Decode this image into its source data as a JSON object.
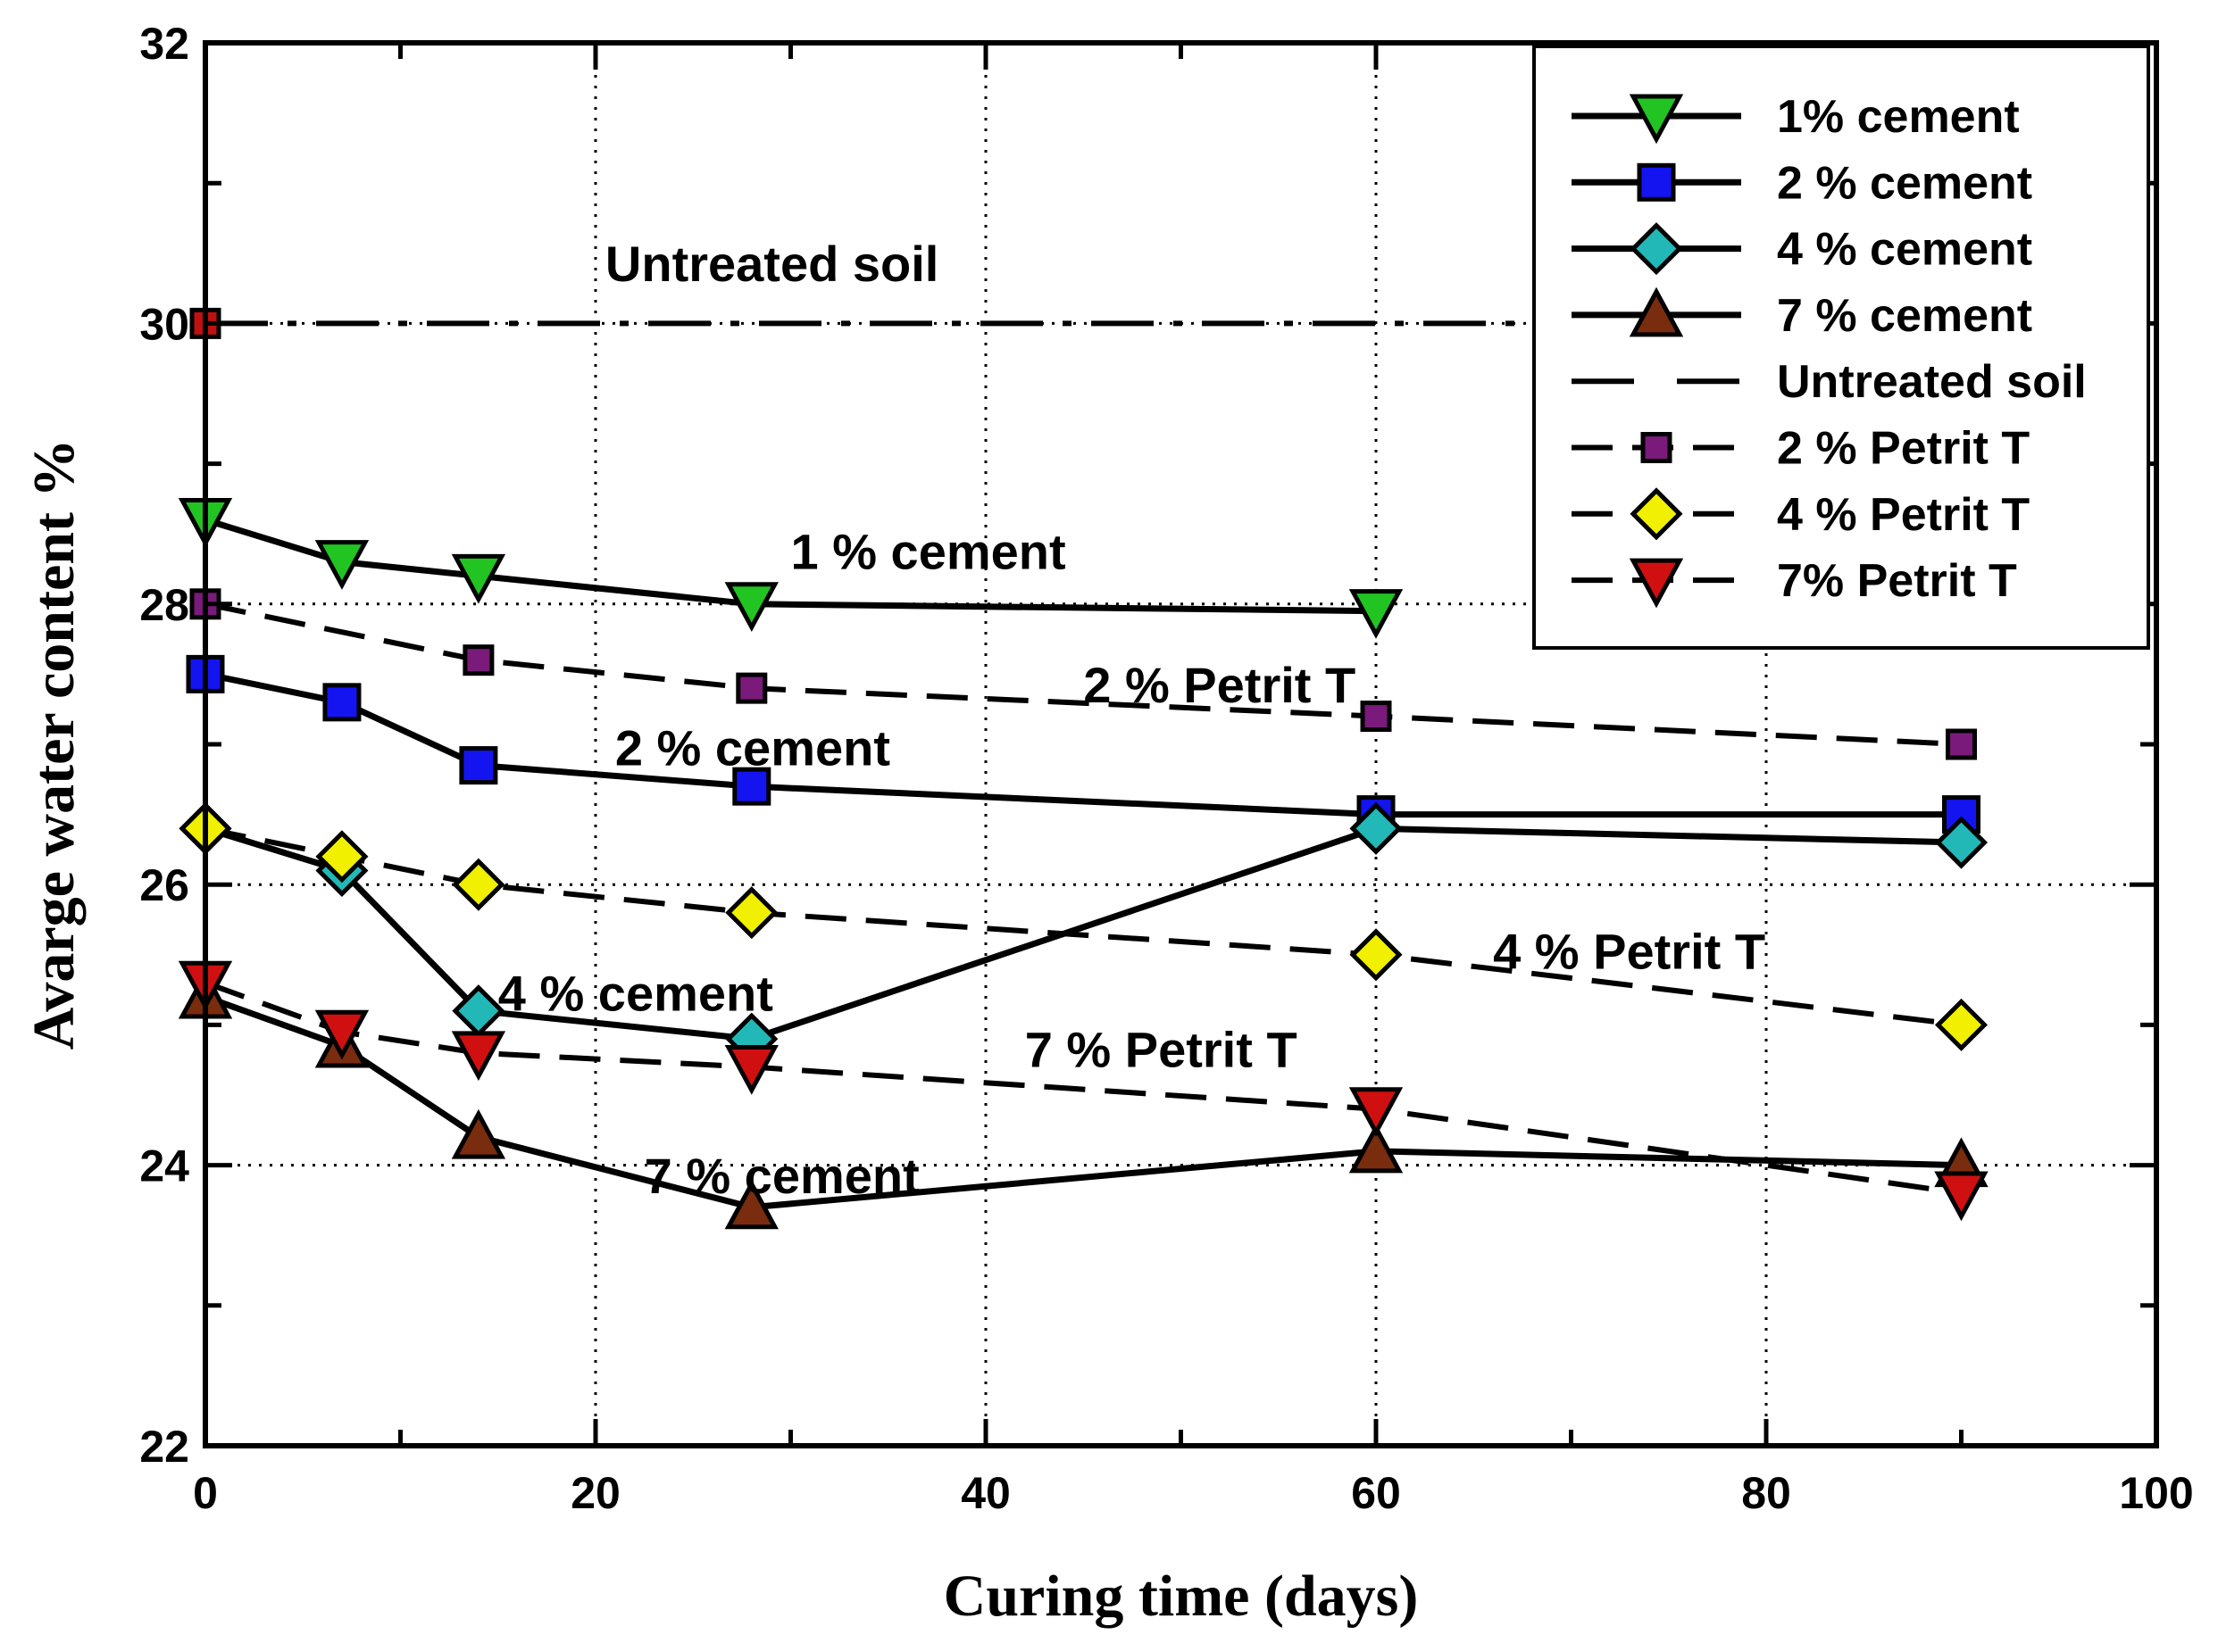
{
  "chart_data": {
    "type": "line",
    "title": "",
    "xlabel": "Curing time (days)",
    "ylabel": "Avarge water content %",
    "xlim": [
      0,
      100
    ],
    "ylim": [
      22,
      32
    ],
    "x_ticks": [
      0,
      20,
      40,
      60,
      80,
      100
    ],
    "x_tick_labels": [
      "0",
      "20",
      "40",
      "60",
      "80",
      "100"
    ],
    "y_ticks": [
      22,
      24,
      26,
      28,
      30,
      32
    ],
    "y_tick_labels": [
      "22",
      "24",
      "26",
      "28",
      "30",
      "32"
    ],
    "grid": "dotted at major ticks",
    "legend_position": "top-right",
    "series": [
      {
        "name": "1% cement",
        "style": "solid",
        "marker": "triangle-down",
        "color": "#22c422",
        "x": [
          0,
          7,
          14,
          28,
          60
        ],
        "y": [
          28.6,
          28.3,
          28.2,
          28.0,
          27.95
        ]
      },
      {
        "name": "2 % cement",
        "style": "solid",
        "marker": "square",
        "color": "#1414f0",
        "x": [
          0,
          7,
          14,
          28,
          60,
          90
        ],
        "y": [
          27.5,
          27.3,
          26.85,
          26.7,
          26.5,
          26.5
        ]
      },
      {
        "name": "4 % cement",
        "style": "solid",
        "marker": "diamond",
        "color": "#22b8b8",
        "x": [
          0,
          7,
          14,
          28,
          60,
          90
        ],
        "y": [
          26.4,
          26.1,
          25.1,
          24.9,
          26.4,
          26.3
        ]
      },
      {
        "name": "7 % cement",
        "style": "solid",
        "marker": "triangle-up",
        "color": "#7a2c0e",
        "x": [
          0,
          7,
          14,
          28,
          60,
          90
        ],
        "y": [
          25.2,
          24.85,
          24.2,
          23.7,
          24.1,
          24.0
        ]
      },
      {
        "name": "Untreated soil",
        "style": "dashdot",
        "marker": "none",
        "color": "#000000",
        "x": [
          0,
          100
        ],
        "y": [
          30.0,
          30.0
        ]
      },
      {
        "name": "2 % Petrit T",
        "style": "dashed",
        "marker": "square-small",
        "color": "#7a1a7a",
        "x": [
          0,
          14,
          28,
          60,
          90
        ],
        "y": [
          28.0,
          27.6,
          27.4,
          27.2,
          27.0
        ]
      },
      {
        "name": "4 % Petrit T",
        "style": "dashed",
        "marker": "diamond",
        "color": "#f0f000",
        "x": [
          0,
          7,
          14,
          28,
          60,
          90
        ],
        "y": [
          26.4,
          26.2,
          26.0,
          25.8,
          25.5,
          25.0
        ]
      },
      {
        "name": "7% Petrit T",
        "style": "dashed",
        "marker": "triangle-down",
        "color": "#d01010",
        "x": [
          0,
          7,
          14,
          28,
          60,
          90
        ],
        "y": [
          25.3,
          24.95,
          24.8,
          24.7,
          24.4,
          23.8
        ]
      }
    ],
    "untreated_point": {
      "x": 0,
      "y": 30.0,
      "marker": "square-small",
      "color": "#c01010"
    },
    "annotations": [
      {
        "text": "Untreated soil",
        "x": 20.5,
        "y": 30.3
      },
      {
        "text": "1 % cement",
        "x": 30,
        "y": 28.25
      },
      {
        "text": "2 % Petrit T",
        "x": 45,
        "y": 27.3
      },
      {
        "text": "2 % cement",
        "x": 21,
        "y": 26.85
      },
      {
        "text": "4 % cement",
        "x": 15,
        "y": 25.1
      },
      {
        "text": "4 % Petrit T",
        "x": 66,
        "y": 25.4
      },
      {
        "text": "7 % Petrit T",
        "x": 42,
        "y": 24.7
      },
      {
        "text": "7 % cement",
        "x": 22.5,
        "y": 23.8
      }
    ]
  }
}
